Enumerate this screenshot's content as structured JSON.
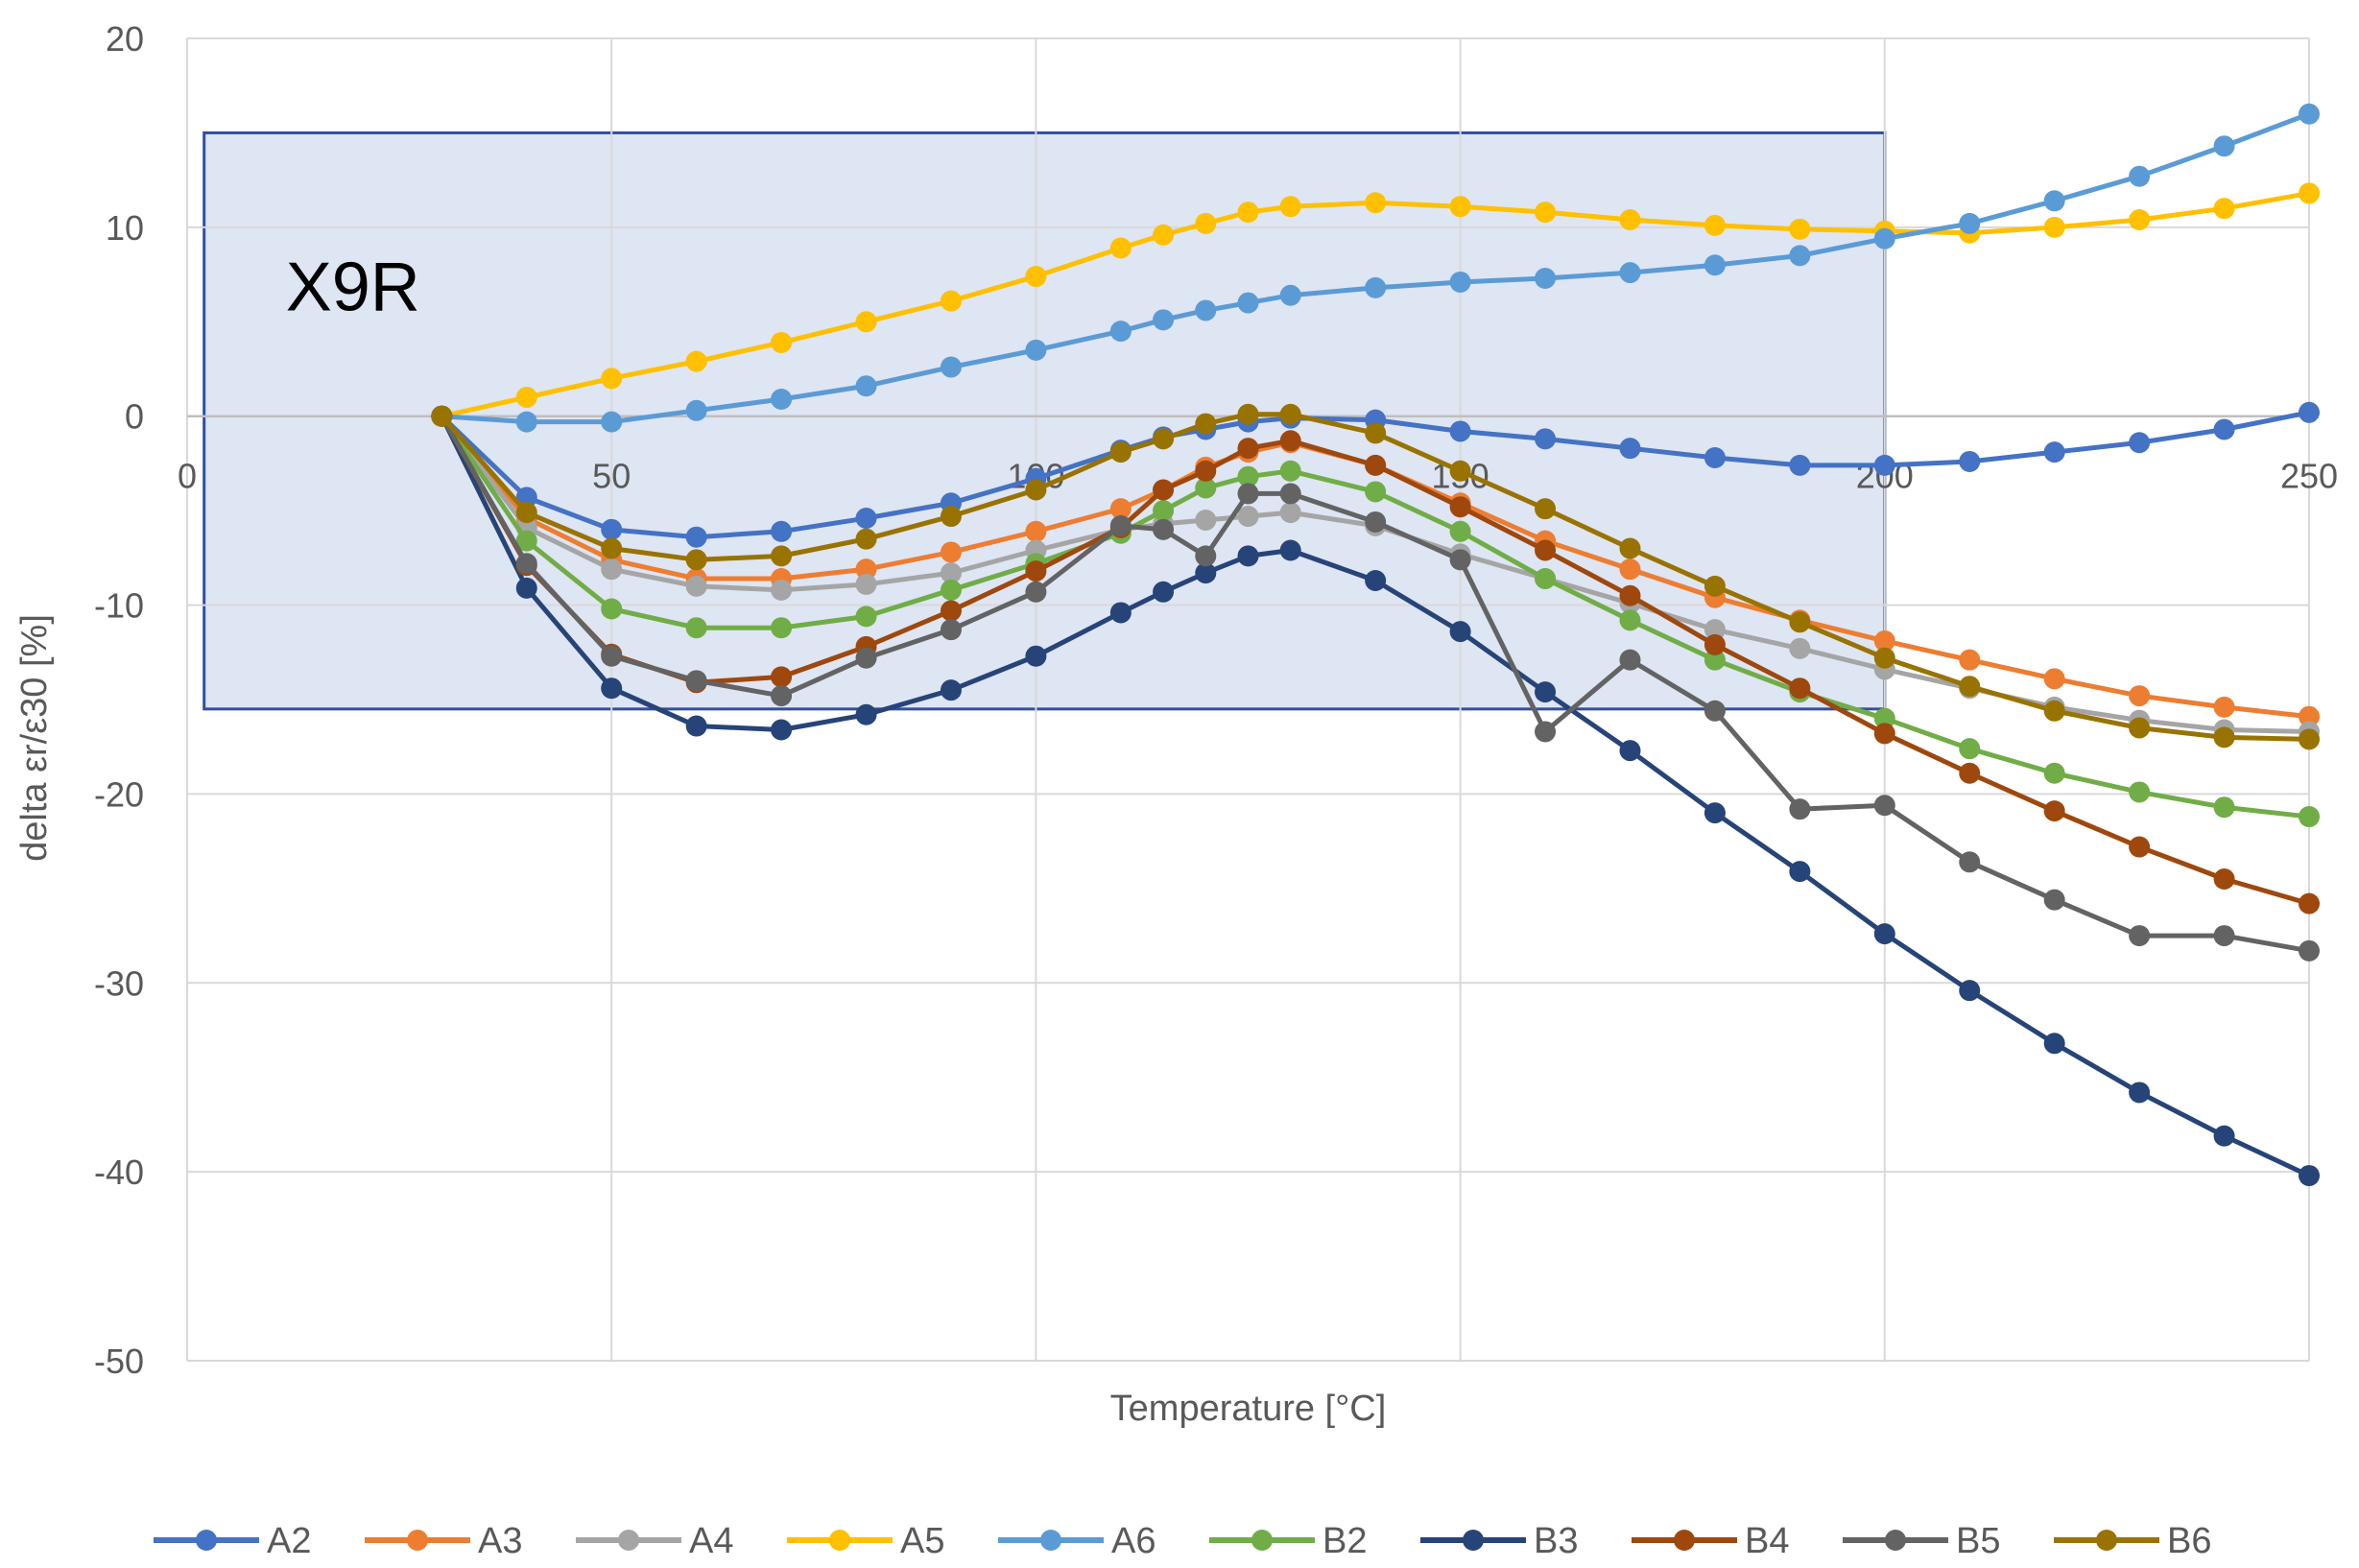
{
  "chart_data": {
    "type": "line",
    "title": "",
    "xlabel": "Temperature  [°C]",
    "ylabel": "delta εr/ε30  [%]",
    "xlim": [
      0,
      250
    ],
    "ylim": [
      -50,
      20
    ],
    "x_ticks": [
      0,
      50,
      100,
      150,
      200,
      250
    ],
    "y_ticks": [
      -50,
      -40,
      -30,
      -20,
      -10,
      0,
      10,
      20
    ],
    "x_tick_labels": [
      "0",
      "50",
      "100",
      "150",
      "200",
      "250"
    ],
    "y_tick_labels": [
      "-50",
      "-40",
      "-30",
      "-20",
      "-10",
      "0",
      "10",
      "20"
    ],
    "grid": true,
    "legend_position": "bottom",
    "x": [
      30,
      40,
      50,
      60,
      70,
      80,
      90,
      100,
      110,
      115,
      120,
      125,
      130,
      140,
      150,
      160,
      170,
      180,
      190,
      200,
      210,
      220,
      230,
      240,
      250
    ],
    "series": [
      {
        "name": "A2",
        "color": "#4472C4",
        "values": [
          0,
          -4.3,
          -6.0,
          -6.4,
          -6.1,
          -5.4,
          -4.6,
          -3.3,
          -1.8,
          -1.1,
          -0.7,
          -0.3,
          -0.1,
          -0.2,
          -0.8,
          -1.2,
          -1.7,
          -2.2,
          -2.6,
          -2.6,
          -2.4,
          -1.9,
          -1.4,
          -0.7,
          0.2
        ]
      },
      {
        "name": "A3",
        "color": "#ED7D31",
        "values": [
          0,
          -5.4,
          -7.6,
          -8.6,
          -8.6,
          -8.1,
          -7.2,
          -6.1,
          -4.9,
          -3.9,
          -2.7,
          -1.9,
          -1.4,
          -2.6,
          -4.6,
          -6.6,
          -8.1,
          -9.6,
          -10.8,
          -11.9,
          -12.9,
          -13.9,
          -14.8,
          -15.4,
          -15.9
        ]
      },
      {
        "name": "A4",
        "color": "#A5A5A5",
        "values": [
          0,
          -5.9,
          -8.1,
          -9.0,
          -9.2,
          -8.9,
          -8.3,
          -7.1,
          -6.0,
          -5.7,
          -5.5,
          -5.3,
          -5.1,
          -5.8,
          -7.3,
          -8.6,
          -9.9,
          -11.3,
          -12.3,
          -13.4,
          -14.4,
          -15.4,
          -16.1,
          -16.6,
          -16.7
        ]
      },
      {
        "name": "A5",
        "color": "#FFC000",
        "values": [
          0,
          1.0,
          2.0,
          2.9,
          3.9,
          5.0,
          6.1,
          7.4,
          8.9,
          9.6,
          10.2,
          10.8,
          11.1,
          11.3,
          11.1,
          10.8,
          10.4,
          10.1,
          9.9,
          9.8,
          9.7,
          10.0,
          10.4,
          11.0,
          11.8
        ]
      },
      {
        "name": "A6",
        "color": "#5B9BD5",
        "values": [
          0,
          -0.3,
          -0.3,
          0.3,
          0.9,
          1.6,
          2.6,
          3.5,
          4.5,
          5.1,
          5.6,
          6.0,
          6.4,
          6.8,
          7.1,
          7.3,
          7.6,
          8.0,
          8.5,
          9.4,
          10.2,
          11.4,
          12.7,
          14.3,
          16.0
        ]
      },
      {
        "name": "B2",
        "color": "#70AD47",
        "values": [
          0,
          -6.6,
          -10.2,
          -11.2,
          -11.2,
          -10.6,
          -9.2,
          -7.8,
          -6.2,
          -5.0,
          -3.8,
          -3.2,
          -2.9,
          -4.0,
          -6.1,
          -8.6,
          -10.8,
          -12.9,
          -14.6,
          -16.0,
          -17.6,
          -18.9,
          -19.9,
          -20.7,
          -21.2
        ]
      },
      {
        "name": "B3",
        "color": "#264478",
        "values": [
          0,
          -9.1,
          -14.4,
          -16.4,
          -16.6,
          -15.8,
          -14.5,
          -12.7,
          -10.4,
          -9.3,
          -8.3,
          -7.4,
          -7.1,
          -8.7,
          -11.4,
          -14.6,
          -17.7,
          -21.0,
          -24.1,
          -27.4,
          -30.4,
          -33.2,
          -35.8,
          -38.1,
          -40.2
        ]
      },
      {
        "name": "B4",
        "color": "#9E480E",
        "values": [
          0,
          -7.9,
          -12.6,
          -14.1,
          -13.8,
          -12.2,
          -10.3,
          -8.2,
          -5.9,
          -3.9,
          -2.9,
          -1.7,
          -1.3,
          -2.6,
          -4.8,
          -7.1,
          -9.5,
          -12.1,
          -14.4,
          -16.8,
          -18.9,
          -20.9,
          -22.8,
          -24.5,
          -25.8
        ]
      },
      {
        "name": "B5",
        "color": "#636363",
        "values": [
          0,
          -7.8,
          -12.7,
          -14.0,
          -14.8,
          -12.8,
          -11.3,
          -9.3,
          -5.8,
          -6.0,
          -7.4,
          -4.1,
          -4.1,
          -5.6,
          -7.6,
          -16.7,
          -12.9,
          -15.6,
          -20.8,
          -20.6,
          -23.6,
          -25.6,
          -27.5,
          -27.5,
          -28.3
        ]
      },
      {
        "name": "B6",
        "color": "#997300",
        "values": [
          0,
          -5.1,
          -7.0,
          -7.6,
          -7.4,
          -6.5,
          -5.3,
          -3.9,
          -1.9,
          -1.2,
          -0.4,
          0.1,
          0.1,
          -0.9,
          -2.9,
          -4.9,
          -7.0,
          -9.0,
          -10.9,
          -12.8,
          -14.3,
          -15.6,
          -16.5,
          -17.0,
          -17.1
        ]
      }
    ],
    "annotation": {
      "label": "X9R",
      "region": {
        "x_min": 2,
        "x_max": 200,
        "y_min": -15.5,
        "y_max": 15
      },
      "fill": "#D6DEF0",
      "stroke": "#2F4F9F"
    },
    "label_x": 12
  }
}
